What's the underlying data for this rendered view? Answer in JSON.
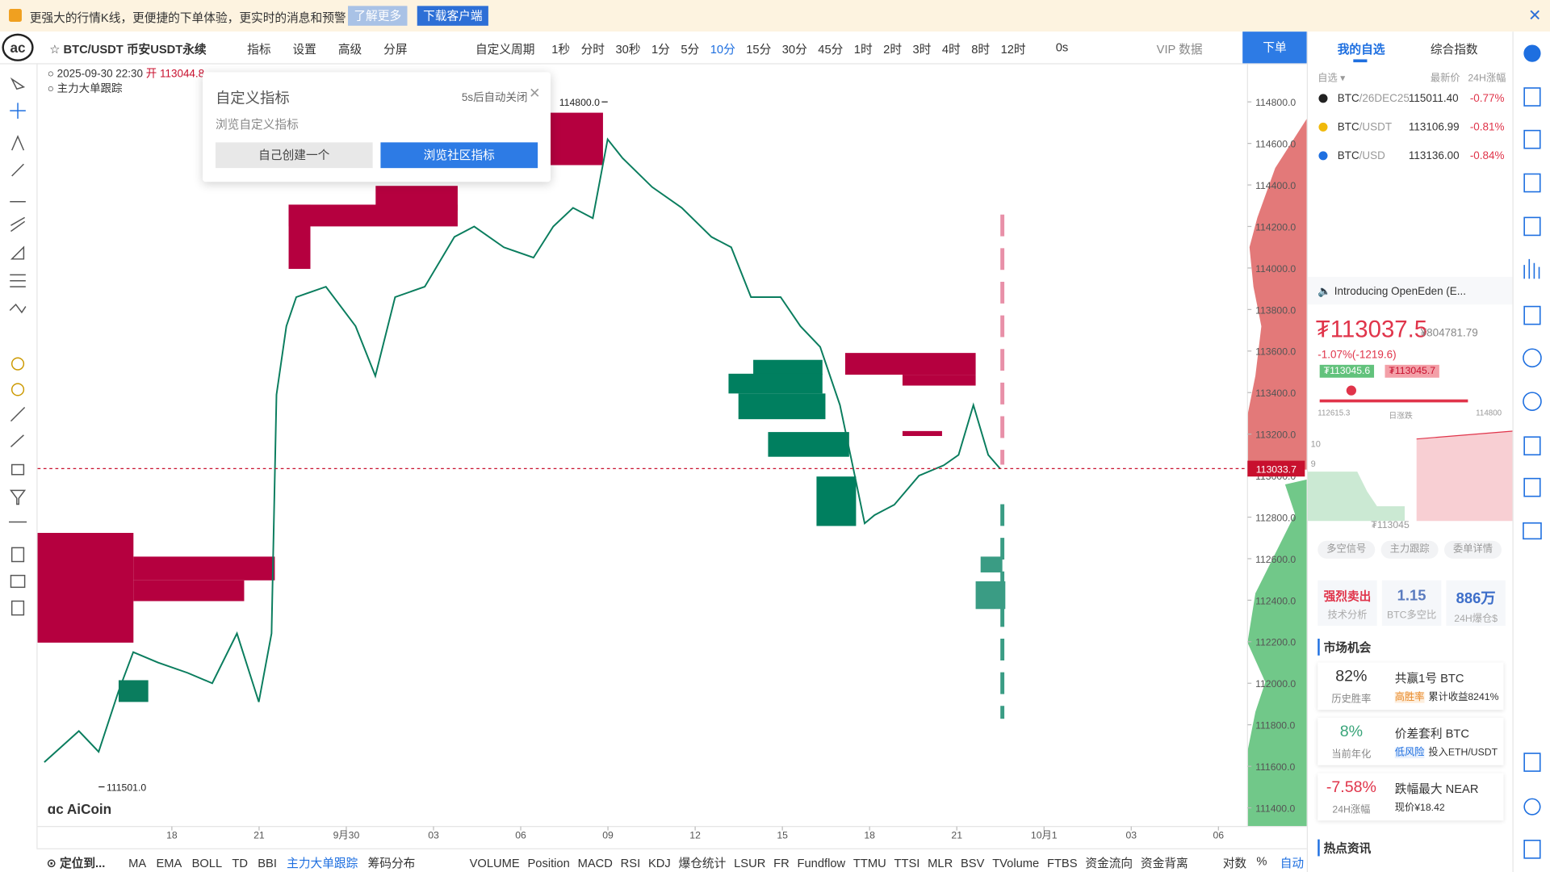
{
  "banner": {
    "text": "更强大的行情K线，更便捷的下单体验，更实时的消息和预警",
    "learn_more": "了解更多",
    "download": "下载客户端"
  },
  "toolbar": {
    "symbol": "BTC/USDT 币安USDT永续",
    "items": [
      "指标",
      "设置",
      "高级",
      "分屏"
    ],
    "custom_period": "自定义周期",
    "periods": [
      "1秒",
      "分时",
      "30秒",
      "1分",
      "5分",
      "10分",
      "15分",
      "30分",
      "45分",
      "1时",
      "2时",
      "3时",
      "4时",
      "8时",
      "12时"
    ],
    "countdown": "0s",
    "vip": "VIP 数据",
    "order": "下单"
  },
  "info": {
    "datetime": "2025-09-30 22:30",
    "open": "开 113044.8",
    "indicator": "主力大单跟踪"
  },
  "popup": {
    "title": "自定义指标",
    "auto_close": "5s后自动关闭",
    "subtitle": "浏览自定义指标",
    "create": "自己创建一个",
    "browse": "浏览社区指标"
  },
  "chart_data": {
    "type": "line",
    "color": "#0a7d5e",
    "x": [
      -4.39,
      -3.2,
      -2.52,
      -1.84,
      -1.33,
      -0.48,
      0.54,
      1.39,
      2.24,
      2.99,
      3.43,
      3.6,
      3.94,
      4.28,
      5.3,
      6.32,
      7.0,
      7.68,
      8.7,
      9.72,
      10.4,
      11.42,
      12.44,
      13.12,
      13.8,
      14.48,
      14.99,
      15.5,
      16.52,
      17.54,
      18.56,
      19.24,
      19.92,
      20.94,
      21.62,
      22.3,
      22.98,
      23.49,
      23.83,
      24.17,
      24.85,
      25.7,
      26.55,
      27.06,
      27.57,
      28.08,
      28.49
    ],
    "values": [
      111620,
      111770,
      111670,
      111960,
      112150,
      112100,
      112050,
      112000,
      112240,
      111910,
      112240,
      113390,
      113720,
      113860,
      113910,
      113720,
      113480,
      113860,
      113910,
      114150,
      114200,
      114100,
      114050,
      114200,
      114290,
      114240,
      114620,
      114530,
      114390,
      114290,
      114150,
      114100,
      113860,
      113860,
      113720,
      113620,
      113340,
      113000,
      112770,
      112810,
      112860,
      113000,
      113050,
      113100,
      113340,
      113100,
      113033.7
    ],
    "xlim": [
      -4.62,
      37
    ],
    "ylim": [
      111310,
      114986
    ],
    "grid": false,
    "yticks": [
      {
        "value": 114800,
        "label": "114800.0"
      },
      {
        "value": 114600,
        "label": "114600.0"
      },
      {
        "value": 114400,
        "label": "114400.0"
      },
      {
        "value": 114200,
        "label": "114200.0"
      },
      {
        "value": 114000,
        "label": "114000.0"
      },
      {
        "value": 113800,
        "label": "113800.0"
      },
      {
        "value": 113600,
        "label": "113600.0"
      },
      {
        "value": 113400,
        "label": "113400.0"
      },
      {
        "value": 113200,
        "label": "113200.0"
      },
      {
        "value": 113000,
        "label": "113000.0"
      },
      {
        "value": 112800,
        "label": "112800.0"
      },
      {
        "value": 112600,
        "label": "112600.0"
      },
      {
        "value": 112400,
        "label": "112400.0"
      },
      {
        "value": 112200,
        "label": "112200.0"
      },
      {
        "value": 112000,
        "label": "112000.0"
      },
      {
        "value": 111800,
        "label": "111800.0"
      },
      {
        "value": 111600,
        "label": "111600.0"
      },
      {
        "value": 111400,
        "label": "111400.0"
      }
    ],
    "xticks": [
      {
        "value": 0,
        "label": "18"
      },
      {
        "value": 3,
        "label": "21"
      },
      {
        "value": 6,
        "label": "9月30"
      },
      {
        "value": 9,
        "label": "03"
      },
      {
        "value": 12,
        "label": "06"
      },
      {
        "value": 15,
        "label": "09"
      },
      {
        "value": 18,
        "label": "12"
      },
      {
        "value": 21,
        "label": "15"
      },
      {
        "value": 24,
        "label": "18"
      },
      {
        "value": 27,
        "label": "21"
      },
      {
        "value": 30,
        "label": "10月1"
      },
      {
        "value": 33,
        "label": "03"
      },
      {
        "value": 36,
        "label": "06"
      }
    ],
    "current_price": {
      "value": 113033.7,
      "label": "113033.7"
    },
    "high_mark": {
      "x": 14.99,
      "value": 114800,
      "label": "114800.0"
    },
    "low_mark": {
      "x": -2.52,
      "value": 111501,
      "label": "111501.0"
    },
    "watermark": "AiCoin"
  },
  "bottom_bar": {
    "locate": "定位到...",
    "main_indicators": [
      "MA",
      "EMA",
      "BOLL",
      "TD",
      "BBI",
      "主力大单跟踪",
      "筹码分布"
    ],
    "sub_indicators": [
      "VOLUME",
      "Position",
      "MACD",
      "RSI",
      "KDJ",
      "爆仓统计",
      "LSUR",
      "FR",
      "Fundflow",
      "TTMU",
      "TTSI",
      "MLR",
      "BSV",
      "TVolume",
      "FTBS",
      "资金流向",
      "资金背离"
    ],
    "log": "对数",
    "percent": "%",
    "auto": "自动"
  },
  "side": {
    "tabs": [
      "我的自选",
      "综合指数"
    ],
    "list_header": {
      "group": "自选",
      "price": "最新价",
      "change": "24H涨幅"
    },
    "watchlist": [
      {
        "base": "BTC",
        "quote": "/26DEC25",
        "price": "115011.40",
        "change": "-0.77%"
      },
      {
        "base": "BTC",
        "quote": "/USDT",
        "price": "113106.99",
        "change": "-0.81%"
      },
      {
        "base": "BTC",
        "quote": "/USD",
        "price": "113136.00",
        "change": "-0.84%"
      }
    ],
    "news": "Introducing OpenEden (E...",
    "price": "₮113037.5",
    "price_cny": "¥804781.79",
    "change": "-1.07%(-1219.6)",
    "bid": "₮113045.6",
    "ask": "₮113045.7",
    "range_low": "112615.3",
    "range_label": "日涨跌",
    "range_high": "114800",
    "depth_labels": [
      "10",
      "9"
    ],
    "depth_price": "₮113045",
    "depth_tabs": [
      "多空信号",
      "主力跟踪",
      "委单详情"
    ],
    "cards": [
      {
        "value": "强烈卖出",
        "label": "技术分析"
      },
      {
        "value": "1.15",
        "label": "BTC多空比"
      },
      {
        "value": "886万",
        "label": "24H爆仓$"
      }
    ],
    "opportunity_title": "市场机会",
    "opportunities": [
      {
        "value": "82%",
        "label": "历史胜率",
        "title": "共赢1号 BTC",
        "tag": "高胜率",
        "detail": "累计收益8241%"
      },
      {
        "value": "8%",
        "label": "当前年化",
        "title": "价差套利 BTC",
        "tag": "低风险",
        "detail": "投入ETH/USDT"
      },
      {
        "value": "-7.58%",
        "label": "24H涨幅",
        "title": "跌幅最大 NEAR",
        "tag": "",
        "detail": "现价¥18.42"
      }
    ],
    "hot_news": "热点资讯"
  }
}
